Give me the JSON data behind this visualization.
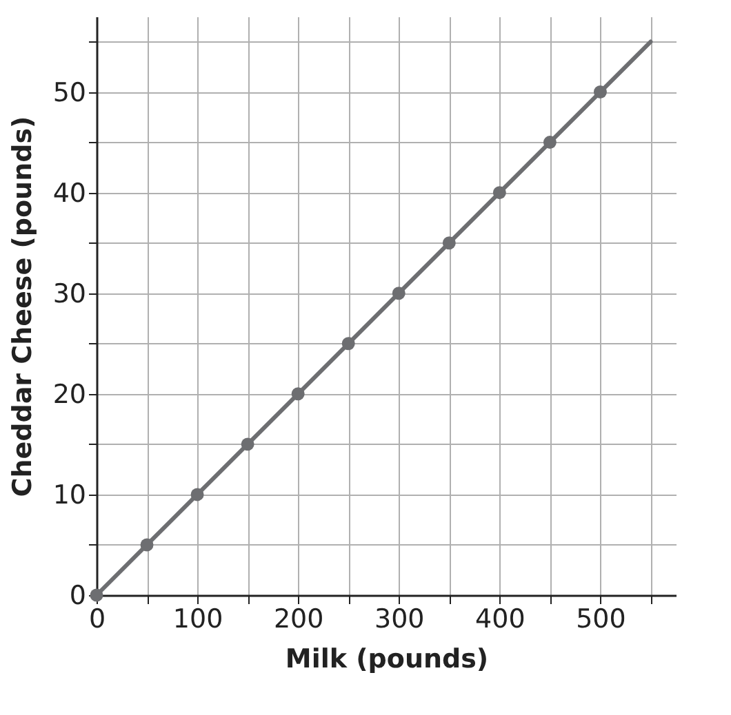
{
  "chart_data": {
    "type": "line",
    "xlabel": "Milk (pounds)",
    "ylabel": "Cheddar Cheese (pounds)",
    "xlim": [
      0,
      575
    ],
    "ylim": [
      0,
      57.5
    ],
    "xticks": [
      0,
      {
        "value": 50,
        "label": null
      },
      100,
      {
        "value": 150,
        "label": null
      },
      200,
      {
        "value": 250,
        "label": null
      },
      300,
      {
        "value": 350,
        "label": null
      },
      400,
      {
        "value": 450,
        "label": null
      },
      500,
      {
        "value": 550,
        "label": null
      }
    ],
    "yticks": [
      0,
      {
        "value": 5,
        "label": null
      },
      10,
      {
        "value": 15,
        "label": null
      },
      20,
      {
        "value": 25,
        "label": null
      },
      30,
      {
        "value": 35,
        "label": null
      },
      40,
      {
        "value": 45,
        "label": null
      },
      50,
      {
        "value": 55,
        "label": null
      }
    ],
    "grid": true,
    "marker": "circle",
    "line_style": "solid",
    "series": [
      {
        "color": "#6d6e71",
        "x": [
          0,
          50,
          100,
          150,
          200,
          250,
          300,
          350,
          400,
          450,
          500
        ],
        "values": [
          0,
          5,
          10,
          15,
          20,
          25,
          30,
          35,
          40,
          45,
          50
        ]
      },
      {
        "color": "#6d6e71",
        "marker": "none",
        "x": [
          500,
          550
        ],
        "values": [
          50,
          55
        ]
      }
    ]
  }
}
